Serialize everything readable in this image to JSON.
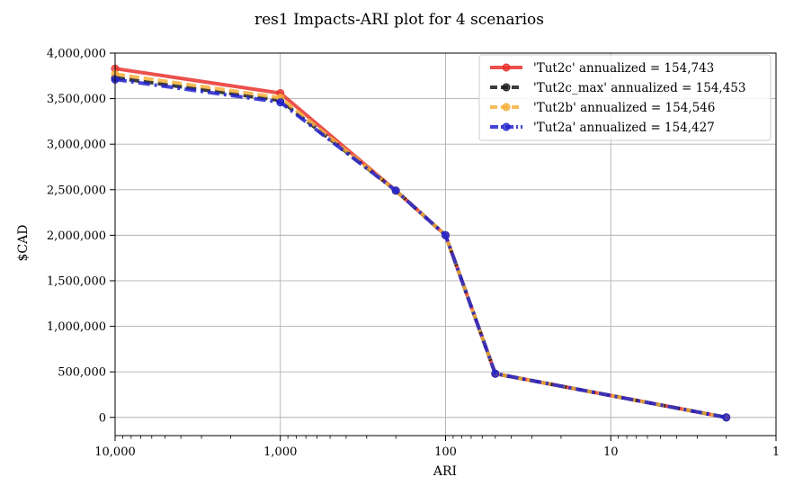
{
  "chart_data": {
    "type": "line",
    "title": "res1 Impacts-ARI plot for 4 scenarios",
    "xlabel": "ARI",
    "ylabel": "$CAD",
    "xscale": "log",
    "x_inverted": true,
    "xlim": [
      10000,
      1
    ],
    "ylim": [
      -200000,
      4000000
    ],
    "grid": true,
    "legend_position": "top-right",
    "x_ticks": [
      10000,
      1000,
      100,
      10,
      1
    ],
    "x_tick_labels": [
      "10,000",
      "1,000",
      "100",
      "10",
      "1"
    ],
    "y_ticks": [
      0,
      500000,
      1000000,
      1500000,
      2000000,
      2500000,
      3000000,
      3500000,
      4000000
    ],
    "y_tick_labels": [
      "0",
      "500,000",
      "1,000,000",
      "1,500,000",
      "2,000,000",
      "2,500,000",
      "3,000,000",
      "3,500,000",
      "4,000,000"
    ],
    "series": [
      {
        "name": "'Tut2c' annualized = 154,743",
        "color": "#e8312e",
        "style": "solid",
        "x": [
          10000,
          1000,
          200,
          100,
          50,
          2
        ],
        "values": [
          3830000,
          3560000,
          2490000,
          2000000,
          480000,
          0
        ]
      },
      {
        "name": "'Tut2c_max' annualized = 154,453",
        "color": "#1a1a1a",
        "style": "dashed",
        "x": [
          10000,
          1000,
          200,
          100,
          50,
          2
        ],
        "values": [
          3730000,
          3480000,
          2490000,
          2000000,
          480000,
          0
        ]
      },
      {
        "name": "'Tut2b' annualized = 154,546",
        "color": "#f5b03c",
        "style": "dashed",
        "x": [
          10000,
          1000,
          200,
          100,
          50,
          2
        ],
        "values": [
          3770000,
          3510000,
          2490000,
          2000000,
          480000,
          0
        ]
      },
      {
        "name": "'Tut2a' annualized = 154,427",
        "color": "#2222cc",
        "style": "dashdot",
        "x": [
          10000,
          1000,
          200,
          100,
          50,
          2
        ],
        "values": [
          3710000,
          3460000,
          2490000,
          2000000,
          480000,
          0
        ]
      }
    ]
  }
}
